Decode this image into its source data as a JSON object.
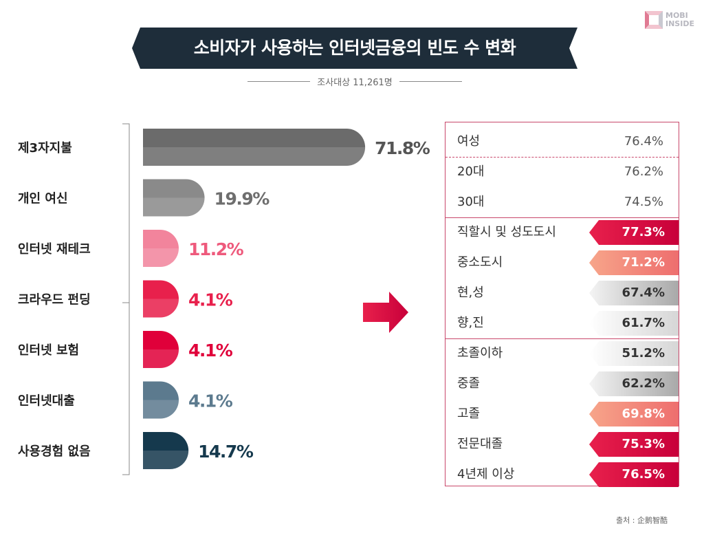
{
  "logo": {
    "line1": "MOBI",
    "line2": "INSIDE"
  },
  "title": "소비자가 사용하는 인터넷금융의 빈도 수 변화",
  "subtitle": "조사대상 11,261명",
  "source": "출처 : 企鹅智酷",
  "colors": {
    "banner": "#1e2d3a",
    "bars": [
      "#6b6b6b",
      "#8a8a8a",
      "#f2849c",
      "#e8204c",
      "#e0003a",
      "#5c7a8e",
      "#15394d"
    ],
    "value_labels": [
      "#555555",
      "#6e6e6e",
      "#ee5a7c",
      "#e8204c",
      "#e0003a",
      "#5c7a8e",
      "#15394d"
    ],
    "panel_border": "#c8476a"
  },
  "chart_data": {
    "type": "bar",
    "orientation": "horizontal",
    "title": "소비자가 사용하는 인터넷금융의 빈도 수 변화",
    "categories": [
      "제3자지불",
      "개인 여신",
      "인터넷 재테크",
      "크라우드 펀딩",
      "인터넷 보험",
      "인터넷대출",
      "사용경험 없음"
    ],
    "values": [
      71.8,
      19.9,
      11.2,
      4.1,
      4.1,
      4.1,
      14.7
    ],
    "value_labels": [
      "71.8%",
      "19.9%",
      "11.2%",
      "4.1%",
      "4.1%",
      "4.1%",
      "14.7%"
    ],
    "unit": "%",
    "xlim": [
      0,
      100
    ]
  },
  "breakdown": {
    "title_ref": "제3자지불",
    "groups": [
      {
        "rows": [
          {
            "label": "여성",
            "value": "76.4%",
            "style": "plain"
          }
        ]
      },
      {
        "rows": [
          {
            "label": "20대",
            "value": "76.2%",
            "style": "plain"
          },
          {
            "label": "30대",
            "value": "74.5%",
            "style": "plain"
          }
        ]
      },
      {
        "rows": [
          {
            "label": "직할시 및 성도도시",
            "value": "77.3%",
            "style": "red"
          },
          {
            "label": "중소도시",
            "value": "71.2%",
            "style": "salmon"
          },
          {
            "label": "현,성",
            "value": "67.4%",
            "style": "gray"
          },
          {
            "label": "향,진",
            "value": "61.7%",
            "style": "light"
          }
        ]
      },
      {
        "rows": [
          {
            "label": "초졸이하",
            "value": "51.2%",
            "style": "light"
          },
          {
            "label": "중졸",
            "value": "62.2%",
            "style": "gray"
          },
          {
            "label": "고졸",
            "value": "69.8%",
            "style": "salmon"
          },
          {
            "label": "전문대졸",
            "value": "75.3%",
            "style": "red"
          },
          {
            "label": "4년제 이상",
            "value": "76.5%",
            "style": "red"
          }
        ]
      }
    ]
  }
}
